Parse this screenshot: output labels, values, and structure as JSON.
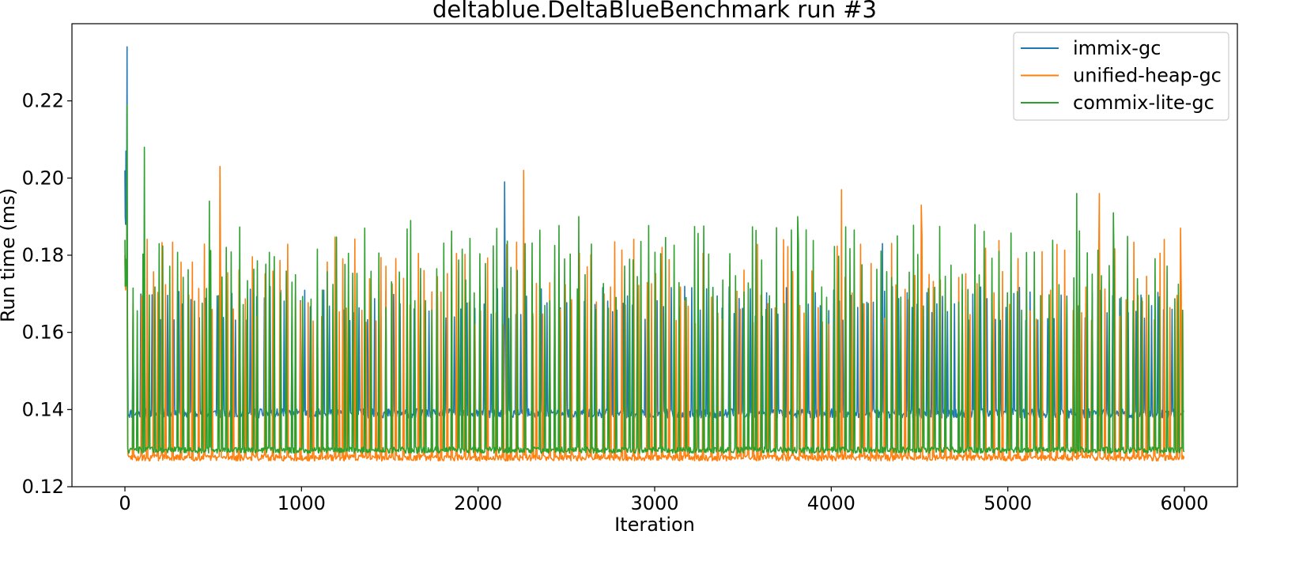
{
  "chart_data": {
    "type": "line",
    "title": "deltablue.DeltaBlueBenchmark run #3",
    "xlabel": "Iteration",
    "ylabel": "Run time (ms)",
    "xlim": [
      -300,
      6300
    ],
    "ylim": [
      0.12,
      0.24
    ],
    "xticks": [
      0,
      1000,
      2000,
      3000,
      4000,
      5000,
      6000
    ],
    "xtick_labels": [
      "0",
      "1000",
      "2000",
      "3000",
      "4000",
      "5000",
      "6000"
    ],
    "yticks": [
      0.12,
      0.14,
      0.16,
      0.18,
      0.2,
      0.22
    ],
    "ytick_labels": [
      "0.12",
      "0.14",
      "0.16",
      "0.18",
      "0.20",
      "0.22"
    ],
    "grid": false,
    "legend_position": "top-right",
    "series": [
      {
        "name": "immix-gc",
        "color": "#1f77b4",
        "baseline": 0.139,
        "noise": 0.0012,
        "spike_min": 0.163,
        "spike_max": 0.172,
        "start_values": [
          0.202,
          0.19,
          0.188,
          0.207,
          0.192,
          0.189,
          0.234,
          0.17,
          0.15
        ],
        "x_max": 6000,
        "extra_spikes": [
          {
            "x": 2150,
            "y": 0.199
          },
          {
            "x": 4290,
            "y": 0.183
          }
        ]
      },
      {
        "name": "unified-heap-gc",
        "color": "#ff7f0e",
        "baseline": 0.1275,
        "noise": 0.0008,
        "spike_min": 0.162,
        "spike_max": 0.185,
        "start_values": [
          0.18,
          0.172,
          0.171,
          0.175,
          0.176,
          0.178,
          0.2,
          0.15,
          0.13
        ],
        "x_max": 6000,
        "extra_spikes": [
          {
            "x": 540,
            "y": 0.203
          },
          {
            "x": 2260,
            "y": 0.202
          },
          {
            "x": 4060,
            "y": 0.197
          },
          {
            "x": 4510,
            "y": 0.193
          },
          {
            "x": 5520,
            "y": 0.196
          },
          {
            "x": 5980,
            "y": 0.187
          }
        ]
      },
      {
        "name": "commix-lite-gc",
        "color": "#2ca02c",
        "baseline": 0.1295,
        "noise": 0.0008,
        "spike_min": 0.165,
        "spike_max": 0.188,
        "start_values": [
          0.184,
          0.172,
          0.175,
          0.176,
          0.179,
          0.172,
          0.219,
          0.16,
          0.13
        ],
        "x_max": 6000,
        "extra_spikes": [
          {
            "x": 110,
            "y": 0.208
          },
          {
            "x": 480,
            "y": 0.194
          },
          {
            "x": 1620,
            "y": 0.189
          },
          {
            "x": 2570,
            "y": 0.19
          },
          {
            "x": 3810,
            "y": 0.19
          },
          {
            "x": 5390,
            "y": 0.196
          },
          {
            "x": 5600,
            "y": 0.191
          }
        ]
      }
    ]
  }
}
